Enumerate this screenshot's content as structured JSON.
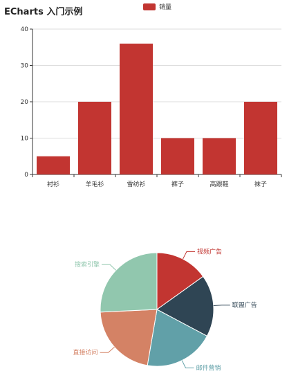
{
  "chart_data": [
    {
      "type": "bar",
      "title": "ECharts 入门示例",
      "categories": [
        "衬衫",
        "羊毛衫",
        "雪纺衫",
        "裤子",
        "高跟鞋",
        "袜子"
      ],
      "series": [
        {
          "name": "销量",
          "values": [
            5,
            20,
            36,
            10,
            10,
            20
          ]
        }
      ],
      "ylim": [
        0,
        40
      ],
      "yticks": [
        0,
        10,
        20,
        30,
        40
      ],
      "grid": true,
      "legend": "top-center",
      "colors": {
        "bar": "#c23531"
      }
    },
    {
      "type": "pie",
      "slices": [
        {
          "label": "视频广告",
          "value": 235,
          "color": "#c23531"
        },
        {
          "label": "联盟广告",
          "value": 274,
          "color": "#2f4554"
        },
        {
          "label": "邮件营销",
          "value": 310,
          "color": "#61a0a8"
        },
        {
          "label": "直接访问",
          "value": 335,
          "color": "#d48265"
        },
        {
          "label": "搜索引擎",
          "value": 400,
          "color": "#91c7ae"
        }
      ]
    }
  ]
}
